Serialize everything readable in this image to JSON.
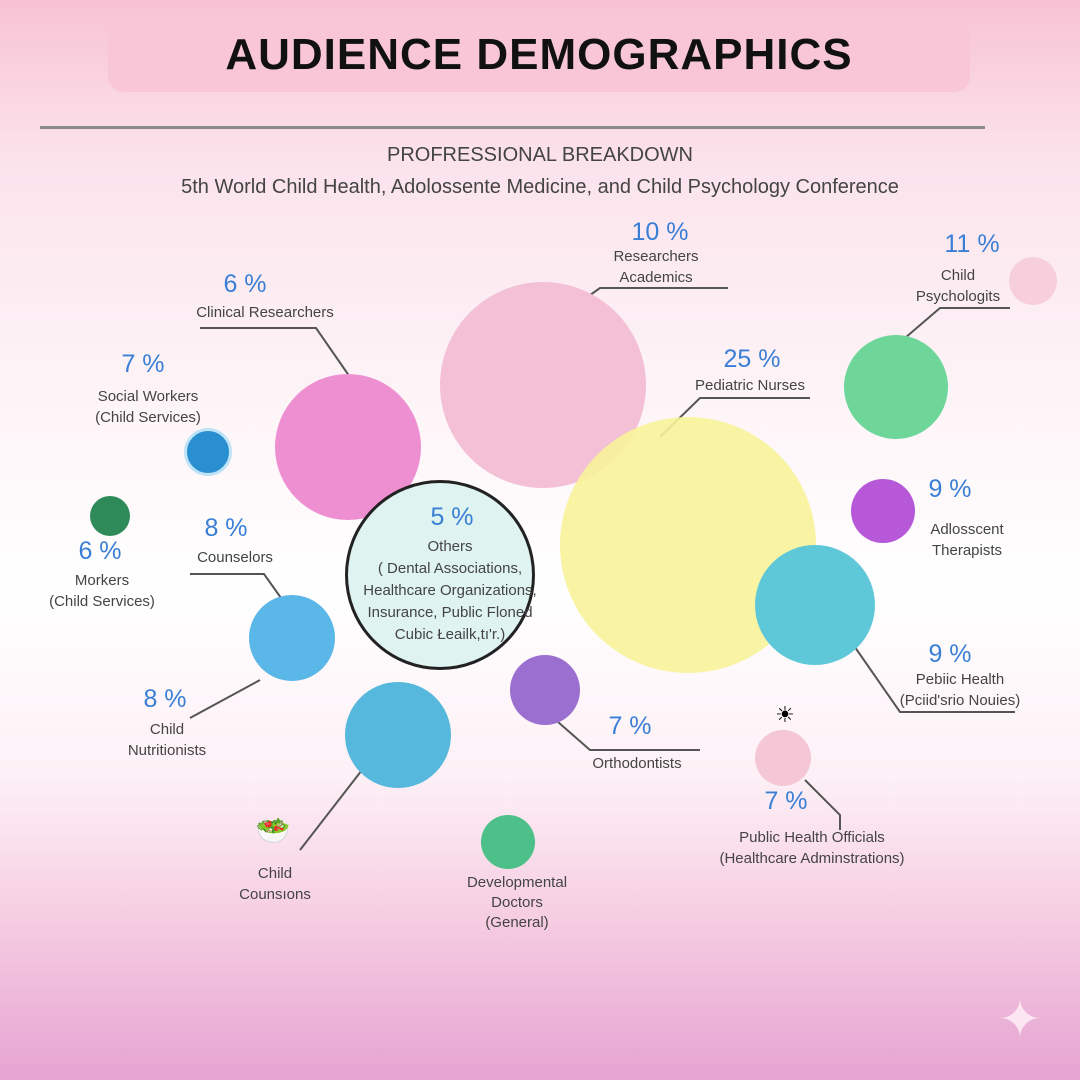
{
  "title": "AUDIENCE DEMOGRAPHICS",
  "subtitle": "PROFRESSIONAL BREAKDOWN",
  "conference": "5th World Child Health, Adolossente Medicine, and Child Psychology Conference",
  "segments": [
    {
      "pct": "10 %",
      "label1": "Researchers",
      "label2": "Academics"
    },
    {
      "pct": "11 %",
      "label1": "Child",
      "label2": "Psychologits"
    },
    {
      "pct": "6 %",
      "label1": "Clinical Researchers"
    },
    {
      "pct": "7 %",
      "label1": "Social Workers",
      "label2": "(Child Services)"
    },
    {
      "pct": "25 %",
      "label1": "Pediatric Nurses"
    },
    {
      "pct": "9 %",
      "label1": "Adlosscent",
      "label2": "Therapists"
    },
    {
      "pct": "6 %",
      "label1": "Morkers",
      "label2": "(Child Services)"
    },
    {
      "pct": "8 %",
      "label1": "Counselors"
    },
    {
      "pct": "5 %",
      "label1": "Others",
      "label2": "( Dental Associations,",
      "label3": "Healthcare Organizations,",
      "label4": "Insurance, Public Floned",
      "label5": "Cubic Łeailk,tı'r.)"
    },
    {
      "pct": "9 %",
      "label1": "Pebiic Health",
      "label2": "(Pciid'srio Nouies)"
    },
    {
      "pct": "8 %",
      "label1": "Child",
      "label2": "Nutritionists"
    },
    {
      "pct": "7 %",
      "label1": "Orthodontists"
    },
    {
      "pct": "7 %",
      "label1": "Public Health Officials",
      "label2": "(Healthcare Adminstrations)"
    },
    {
      "label1": "Child",
      "label2": "Counsıons"
    },
    {
      "label1": "Developmental",
      "label2": "Doctors",
      "label3": "(General)"
    }
  ],
  "colors": {
    "accent": "#3a7fd6",
    "banner": "#f8c6d6"
  }
}
